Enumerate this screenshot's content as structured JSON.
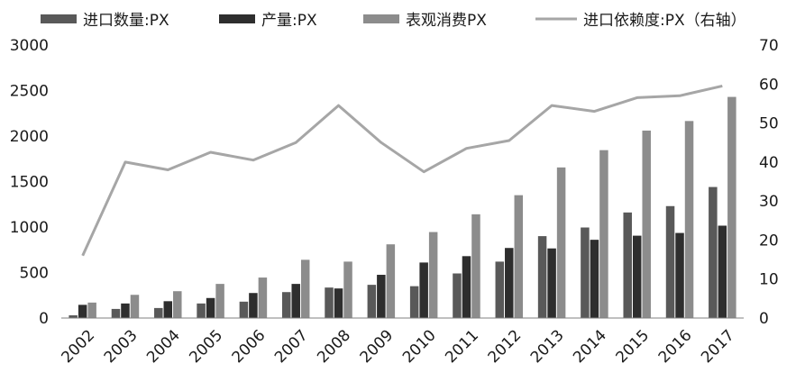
{
  "chart_data": {
    "type": "bar",
    "title": "",
    "xlabel": "",
    "ylabel": "",
    "y2label": "",
    "categories": [
      "2002",
      "2003",
      "2004",
      "2005",
      "2006",
      "2007",
      "2008",
      "2009",
      "2010",
      "2011",
      "2012",
      "2013",
      "2014",
      "2015",
      "2016",
      "2017"
    ],
    "ylim": [
      0,
      3000
    ],
    "y2lim": [
      0,
      70
    ],
    "yticks": [
      "0",
      "500",
      "1000",
      "1500",
      "2000",
      "2500",
      "3000"
    ],
    "y2ticks": [
      "0",
      "10",
      "20",
      "30",
      "40",
      "50",
      "60",
      "70"
    ],
    "legend_position": "top",
    "series": [
      {
        "name": "进口数量:PX",
        "type": "bar",
        "axis": "left",
        "color": "#595959",
        "values": [
          30,
          100,
          110,
          160,
          180,
          285,
          335,
          365,
          350,
          490,
          620,
          900,
          995,
          1160,
          1230,
          1440
        ]
      },
      {
        "name": "产量:PX",
        "type": "bar",
        "axis": "left",
        "color": "#2e2e2e",
        "values": [
          145,
          160,
          185,
          220,
          275,
          375,
          325,
          475,
          610,
          680,
          770,
          765,
          860,
          905,
          935,
          1015
        ]
      },
      {
        "name": "表观消费PX",
        "type": "bar",
        "axis": "left",
        "color": "#8c8c8c",
        "values": [
          170,
          255,
          295,
          375,
          445,
          640,
          620,
          810,
          945,
          1140,
          1350,
          1655,
          1845,
          2060,
          2165,
          2430
        ]
      },
      {
        "name": "进口依赖度:PX（右轴）",
        "type": "line",
        "axis": "right",
        "color": "#a6a6a6",
        "values": [
          16,
          40,
          38,
          42.5,
          40.5,
          45,
          54.5,
          45,
          37.5,
          43.5,
          45.5,
          54.5,
          53,
          56.5,
          57,
          59.5
        ]
      }
    ]
  }
}
